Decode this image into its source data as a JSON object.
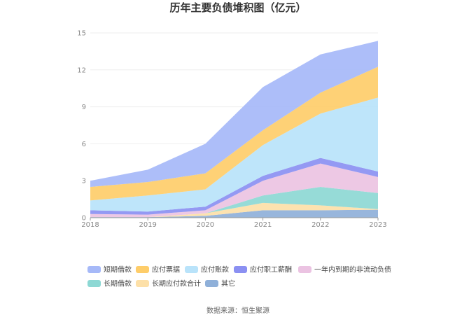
{
  "chart_data": {
    "type": "area",
    "stacked": true,
    "title": "历年主要负债堆积图（亿元）",
    "x": [
      "2018",
      "2019",
      "2020",
      "2021",
      "2022",
      "2023"
    ],
    "y_ticks": [
      "0",
      "3",
      "6",
      "9",
      "12",
      "15"
    ],
    "ylim": [
      0,
      15
    ],
    "grid": true,
    "legend_position": "bottom",
    "series": [
      {
        "name": "其它",
        "color": "#8fb0d9",
        "values": [
          0.05,
          0.05,
          0.15,
          0.6,
          0.6,
          0.65
        ]
      },
      {
        "name": "长期应付款合计",
        "color": "#fde0a8",
        "values": [
          0.0,
          0.0,
          0.2,
          0.6,
          0.4,
          0.05
        ]
      },
      {
        "name": "长期借款",
        "color": "#8dd8d4",
        "values": [
          0.0,
          0.0,
          0.0,
          0.6,
          1.5,
          1.3
        ]
      },
      {
        "name": "一年内到期的非流动负债",
        "color": "#ebc3e2",
        "values": [
          0.25,
          0.2,
          0.25,
          1.2,
          1.9,
          1.3
        ]
      },
      {
        "name": "应付职工薪酬",
        "color": "#8b90f2",
        "values": [
          0.3,
          0.25,
          0.3,
          0.4,
          0.45,
          0.45
        ]
      },
      {
        "name": "应付账款",
        "color": "#b9e3fa",
        "values": [
          0.8,
          1.3,
          1.4,
          2.5,
          3.6,
          6.0
        ]
      },
      {
        "name": "应付票据",
        "color": "#fecd6a",
        "values": [
          1.1,
          1.1,
          1.3,
          1.2,
          1.7,
          2.5
        ]
      },
      {
        "name": "短期借款",
        "color": "#a6b9f8",
        "values": [
          0.5,
          1.0,
          2.4,
          3.5,
          3.1,
          2.1
        ]
      }
    ],
    "legend_order": [
      "短期借款",
      "应付票据",
      "应付账款",
      "应付职工薪酬",
      "一年内到期的非流动负债",
      "长期借款",
      "长期应付款合计",
      "其它"
    ],
    "source": "数据来源：恒生聚源"
  }
}
